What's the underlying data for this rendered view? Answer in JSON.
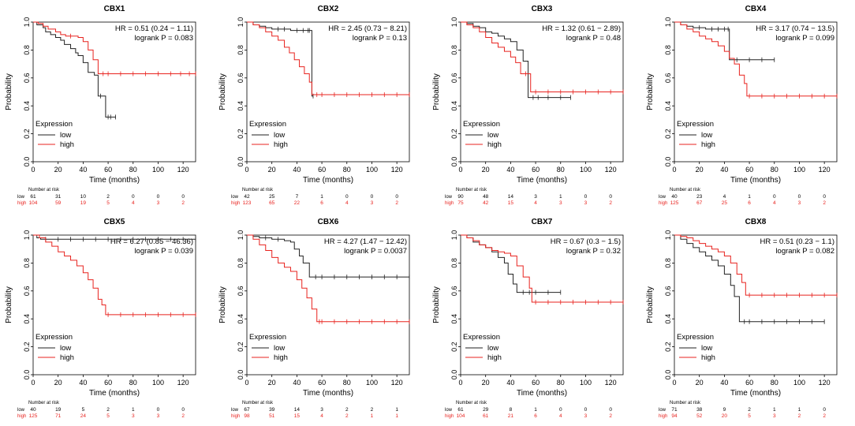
{
  "shared": {
    "ylabel": "Probability",
    "xlabel": "Time (months)",
    "ylim": [
      0,
      1
    ],
    "yticks": [
      "0.0",
      "0.2",
      "0.4",
      "0.6",
      "0.8",
      "1.0"
    ],
    "xticks": [
      "0",
      "20",
      "40",
      "60",
      "80",
      "100",
      "120"
    ],
    "legend_title": "Expression",
    "legend_low": "low",
    "legend_high": "high",
    "nar_title": "Number at risk",
    "low_color": "#222222",
    "high_color": "#e8231f"
  },
  "chart_data": [
    {
      "type": "line",
      "title": "CBX1",
      "hr": "HR = 0.51 (0.24 − 1.11)",
      "logrank": "logrank P = 0.083",
      "series": [
        {
          "name": "low",
          "x": [
            0,
            3,
            8,
            10,
            14,
            18,
            22,
            25,
            30,
            34,
            36,
            40,
            44,
            49,
            52,
            54,
            58,
            60,
            62,
            66
          ],
          "y": [
            1,
            0.98,
            0.96,
            0.93,
            0.91,
            0.89,
            0.87,
            0.84,
            0.81,
            0.78,
            0.76,
            0.71,
            0.64,
            0.62,
            0.47,
            0.47,
            0.32,
            0.32,
            0.32,
            0.32
          ]
        },
        {
          "name": "high",
          "x": [
            0,
            4,
            8,
            12,
            18,
            22,
            26,
            30,
            36,
            40,
            44,
            48,
            52,
            56,
            60,
            70,
            80,
            90,
            100,
            110,
            118,
            125,
            130
          ],
          "y": [
            1,
            0.99,
            0.97,
            0.95,
            0.93,
            0.91,
            0.9,
            0.9,
            0.89,
            0.86,
            0.8,
            0.73,
            0.63,
            0.63,
            0.63,
            0.63,
            0.63,
            0.63,
            0.63,
            0.63,
            0.63,
            0.63,
            0.63
          ]
        }
      ],
      "risk_low": [
        "61",
        "31",
        "10",
        "2",
        "0",
        "0",
        "0"
      ],
      "risk_high": [
        "104",
        "59",
        "19",
        "5",
        "4",
        "3",
        "2"
      ]
    },
    {
      "type": "line",
      "title": "CBX2",
      "hr": "HR = 2.45 (0.73 − 8.21)",
      "logrank": "logrank P = 0.13",
      "series": [
        {
          "name": "low",
          "x": [
            0,
            5,
            10,
            15,
            20,
            25,
            30,
            35,
            40,
            45,
            49,
            50,
            52,
            53
          ],
          "y": [
            1,
            0.98,
            0.97,
            0.96,
            0.95,
            0.95,
            0.95,
            0.94,
            0.94,
            0.94,
            0.94,
            0.94,
            0.47,
            0.47
          ]
        },
        {
          "name": "high",
          "x": [
            0,
            5,
            10,
            15,
            20,
            25,
            30,
            34,
            38,
            42,
            46,
            50,
            52,
            56,
            60,
            70,
            80,
            90,
            100,
            110,
            120,
            130
          ],
          "y": [
            1,
            0.98,
            0.96,
            0.93,
            0.9,
            0.87,
            0.82,
            0.78,
            0.73,
            0.68,
            0.63,
            0.57,
            0.48,
            0.48,
            0.48,
            0.48,
            0.48,
            0.48,
            0.48,
            0.48,
            0.48,
            0.48
          ]
        }
      ],
      "risk_low": [
        "42",
        "25",
        "7",
        "1",
        "0",
        "0",
        "0"
      ],
      "risk_high": [
        "123",
        "65",
        "22",
        "6",
        "4",
        "3",
        "2"
      ]
    },
    {
      "type": "line",
      "title": "CBX3",
      "hr": "HR = 1.32 (0.61 − 2.89)",
      "logrank": "logrank P = 0.48",
      "series": [
        {
          "name": "low",
          "x": [
            0,
            5,
            10,
            15,
            20,
            25,
            30,
            35,
            40,
            45,
            50,
            54,
            58,
            62,
            70,
            80,
            88
          ],
          "y": [
            1,
            0.99,
            0.97,
            0.96,
            0.93,
            0.92,
            0.9,
            0.88,
            0.86,
            0.8,
            0.72,
            0.46,
            0.46,
            0.46,
            0.46,
            0.46,
            0.46
          ]
        },
        {
          "name": "high",
          "x": [
            0,
            5,
            10,
            15,
            20,
            25,
            30,
            35,
            40,
            44,
            48,
            52,
            56,
            60,
            70,
            80,
            90,
            100,
            110,
            120,
            130
          ],
          "y": [
            1,
            0.98,
            0.96,
            0.93,
            0.89,
            0.85,
            0.82,
            0.79,
            0.75,
            0.71,
            0.63,
            0.63,
            0.5,
            0.5,
            0.5,
            0.5,
            0.5,
            0.5,
            0.5,
            0.5,
            0.5
          ]
        }
      ],
      "risk_low": [
        "90",
        "48",
        "14",
        "3",
        "1",
        "0",
        "0"
      ],
      "risk_high": [
        "75",
        "42",
        "15",
        "4",
        "3",
        "3",
        "2"
      ]
    },
    {
      "type": "line",
      "title": "CBX4",
      "hr": "HR = 3.17 (0.74 − 13.5)",
      "logrank": "logrank P = 0.099",
      "series": [
        {
          "name": "low",
          "x": [
            0,
            5,
            10,
            15,
            20,
            25,
            30,
            35,
            40,
            43,
            44,
            50,
            60,
            70,
            80
          ],
          "y": [
            1,
            0.98,
            0.97,
            0.96,
            0.96,
            0.95,
            0.95,
            0.95,
            0.95,
            0.95,
            0.73,
            0.73,
            0.73,
            0.73,
            0.73
          ]
        },
        {
          "name": "high",
          "x": [
            0,
            5,
            10,
            15,
            20,
            25,
            30,
            35,
            40,
            44,
            48,
            52,
            56,
            58,
            60,
            70,
            80,
            90,
            100,
            110,
            120,
            130
          ],
          "y": [
            1,
            0.98,
            0.95,
            0.93,
            0.9,
            0.88,
            0.86,
            0.83,
            0.79,
            0.74,
            0.7,
            0.62,
            0.56,
            0.47,
            0.47,
            0.47,
            0.47,
            0.47,
            0.47,
            0.47,
            0.47,
            0.47
          ]
        }
      ],
      "risk_low": [
        "40",
        "23",
        "4",
        "1",
        "0",
        "0",
        "0"
      ],
      "risk_high": [
        "125",
        "67",
        "25",
        "6",
        "4",
        "3",
        "2"
      ]
    },
    {
      "type": "line",
      "title": "CBX5",
      "hr": "HR = 6.27 (0.85 − 46.36)",
      "logrank": "logrank P = 0.039",
      "series": [
        {
          "name": "low",
          "x": [
            0,
            3,
            6,
            10,
            20,
            30,
            40,
            50,
            60,
            70,
            80,
            90,
            100,
            110,
            120,
            130
          ],
          "y": [
            1,
            0.98,
            0.97,
            0.97,
            0.97,
            0.97,
            0.97,
            0.97,
            0.97,
            0.97,
            0.97,
            0.97,
            0.97,
            0.97,
            0.97,
            0.97
          ]
        },
        {
          "name": "high",
          "x": [
            0,
            5,
            10,
            15,
            20,
            25,
            30,
            35,
            40,
            44,
            48,
            52,
            55,
            58,
            60,
            70,
            80,
            90,
            100,
            110,
            120,
            130
          ],
          "y": [
            1,
            0.98,
            0.95,
            0.92,
            0.88,
            0.85,
            0.82,
            0.78,
            0.73,
            0.68,
            0.62,
            0.54,
            0.5,
            0.43,
            0.43,
            0.43,
            0.43,
            0.43,
            0.43,
            0.43,
            0.43,
            0.43
          ]
        }
      ],
      "risk_low": [
        "40",
        "19",
        "5",
        "2",
        "1",
        "0",
        "0"
      ],
      "risk_high": [
        "125",
        "71",
        "24",
        "5",
        "3",
        "3",
        "2"
      ]
    },
    {
      "type": "line",
      "title": "CBX6",
      "hr": "HR = 4.27 (1.47 − 12.42)",
      "logrank": "logrank P = 0.0037",
      "series": [
        {
          "name": "low",
          "x": [
            0,
            5,
            10,
            15,
            20,
            25,
            30,
            35,
            38,
            42,
            45,
            50,
            55,
            60,
            70,
            80,
            90,
            100,
            110,
            120,
            130
          ],
          "y": [
            1,
            0.99,
            0.98,
            0.98,
            0.97,
            0.97,
            0.96,
            0.95,
            0.9,
            0.85,
            0.8,
            0.7,
            0.7,
            0.7,
            0.7,
            0.7,
            0.7,
            0.7,
            0.7,
            0.7,
            0.7
          ]
        },
        {
          "name": "high",
          "x": [
            0,
            5,
            10,
            15,
            20,
            25,
            30,
            35,
            40,
            44,
            48,
            52,
            56,
            58,
            60,
            70,
            80,
            90,
            100,
            110,
            120,
            130
          ],
          "y": [
            1,
            0.97,
            0.93,
            0.89,
            0.84,
            0.8,
            0.77,
            0.74,
            0.68,
            0.62,
            0.55,
            0.47,
            0.38,
            0.38,
            0.38,
            0.38,
            0.38,
            0.38,
            0.38,
            0.38,
            0.38,
            0.38
          ]
        }
      ],
      "risk_low": [
        "67",
        "39",
        "14",
        "3",
        "2",
        "2",
        "1"
      ],
      "risk_high": [
        "98",
        "51",
        "15",
        "4",
        "2",
        "1",
        "1"
      ]
    },
    {
      "type": "line",
      "title": "CBX7",
      "hr": "HR = 0.67 (0.3 − 1.5)",
      "logrank": "logrank P = 0.32",
      "series": [
        {
          "name": "low",
          "x": [
            0,
            5,
            10,
            15,
            20,
            25,
            30,
            35,
            38,
            42,
            45,
            50,
            55,
            60,
            70,
            80
          ],
          "y": [
            1,
            0.98,
            0.95,
            0.93,
            0.91,
            0.88,
            0.84,
            0.8,
            0.72,
            0.65,
            0.59,
            0.59,
            0.59,
            0.59,
            0.59,
            0.59
          ]
        },
        {
          "name": "high",
          "x": [
            0,
            5,
            10,
            15,
            20,
            25,
            30,
            35,
            40,
            45,
            50,
            55,
            57,
            60,
            70,
            80,
            90,
            100,
            110,
            120,
            130
          ],
          "y": [
            1,
            0.98,
            0.96,
            0.93,
            0.91,
            0.89,
            0.88,
            0.87,
            0.85,
            0.78,
            0.7,
            0.62,
            0.52,
            0.52,
            0.52,
            0.52,
            0.52,
            0.52,
            0.52,
            0.52,
            0.52
          ]
        }
      ],
      "risk_low": [
        "61",
        "29",
        "8",
        "1",
        "0",
        "0",
        "0"
      ],
      "risk_high": [
        "104",
        "61",
        "21",
        "6",
        "4",
        "3",
        "2"
      ]
    },
    {
      "type": "line",
      "title": "CBX8",
      "hr": "HR = 0.51 (0.23 − 1.1)",
      "logrank": "logrank P = 0.082",
      "series": [
        {
          "name": "low",
          "x": [
            0,
            5,
            10,
            15,
            20,
            25,
            30,
            35,
            40,
            45,
            48,
            52,
            56,
            60,
            70,
            80,
            90,
            100,
            110,
            120
          ],
          "y": [
            1,
            0.97,
            0.94,
            0.91,
            0.88,
            0.85,
            0.82,
            0.78,
            0.72,
            0.64,
            0.56,
            0.38,
            0.38,
            0.38,
            0.38,
            0.38,
            0.38,
            0.38,
            0.38,
            0.38
          ]
        },
        {
          "name": "high",
          "x": [
            0,
            5,
            10,
            15,
            20,
            25,
            30,
            35,
            40,
            45,
            50,
            54,
            57,
            60,
            70,
            80,
            90,
            100,
            110,
            120,
            130
          ],
          "y": [
            1,
            0.99,
            0.98,
            0.96,
            0.94,
            0.92,
            0.9,
            0.88,
            0.85,
            0.8,
            0.72,
            0.66,
            0.57,
            0.57,
            0.57,
            0.57,
            0.57,
            0.57,
            0.57,
            0.57,
            0.57
          ]
        }
      ],
      "risk_low": [
        "71",
        "38",
        "9",
        "2",
        "1",
        "1",
        "0"
      ],
      "risk_high": [
        "94",
        "52",
        "20",
        "5",
        "3",
        "2",
        "2"
      ]
    }
  ]
}
